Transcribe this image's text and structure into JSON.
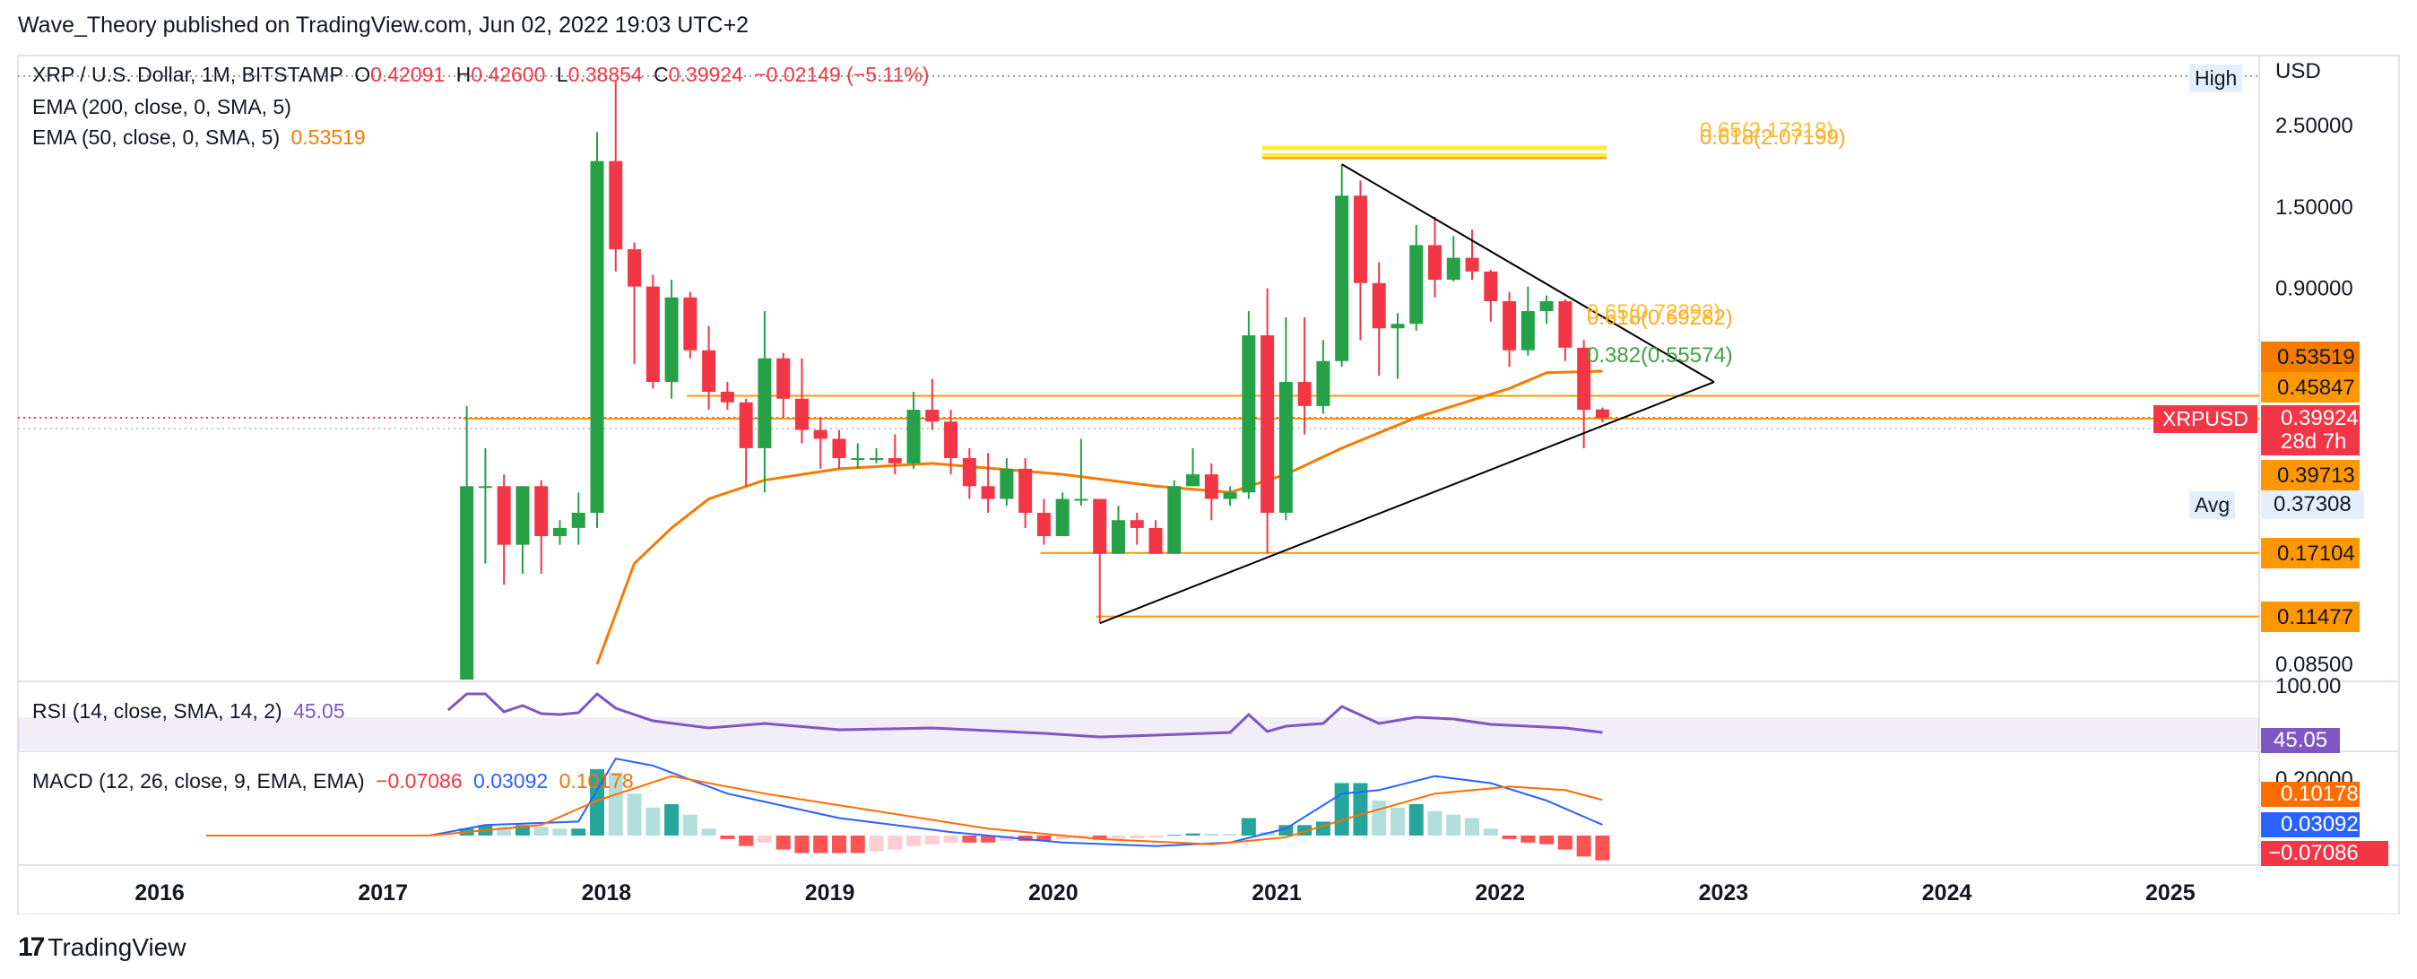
{
  "header": {
    "publisher": "Wave_Theory published on TradingView.com, Jun 02, 2022 19:03 UTC+2"
  },
  "legend": {
    "symbol": "XRP / U.S. Dollar, 1M, BITSTAMP",
    "o_label": "O",
    "o_value": "0.42091",
    "h_label": "H",
    "h_value": "0.42600",
    "l_label": "L",
    "l_value": "0.38854",
    "c_label": "C",
    "c_value": "0.39924",
    "change": "−0.02149 (−5.11%)",
    "ema200": "EMA (200, close, 0, SMA, 5)",
    "ema50": "EMA (50, close, 0, SMA, 5)",
    "ema50_value": "0.53519",
    "rsi": "RSI (14, close, SMA, 14, 2)",
    "rsi_value": "45.05",
    "macd": "MACD (12, 26, close, 9, EMA, EMA)",
    "macd_hist": "−0.07086",
    "macd_line": "0.03092",
    "macd_signal": "0.10178"
  },
  "price_axis": {
    "currency": "USD",
    "ticks": [
      "2.50000",
      "1.50000",
      "0.90000",
      "0.08500"
    ],
    "high_label": "High",
    "avg_label": "Avg",
    "avg_value": "0.37308",
    "labels": [
      {
        "value": "0.53519",
        "color": "#f57c00"
      },
      {
        "value": "0.45847",
        "color": "#ff9800"
      },
      {
        "value": "0.39713",
        "color": "#ff9800"
      },
      {
        "value": "0.17104",
        "color": "#ff9800"
      },
      {
        "value": "0.11477",
        "color": "#ff9800"
      }
    ],
    "current": {
      "symbol": "XRPUSD",
      "value": "0.39924",
      "countdown": "28d 7h",
      "color": "#f23645"
    }
  },
  "rsi_axis": {
    "top_tick": "100.00",
    "value": "45.05",
    "color": "#7e57c2"
  },
  "macd_axis": {
    "top_tick": "0.20000",
    "signal": "0.10178",
    "line": "0.03092",
    "hist": "−0.07086"
  },
  "fib_labels": {
    "top_a": "0.618(2.07199)",
    "top_b": "0.65(2.17318)",
    "mid_a": "0.618(0.69282)",
    "mid_b": "0.65(0.72292)",
    "mid_c": "0.382(0.55574)"
  },
  "time_axis": [
    "2016",
    "2017",
    "2018",
    "2019",
    "2020",
    "2021",
    "2022",
    "2023",
    "2024",
    "2025"
  ],
  "footer": {
    "brand": "TradingView"
  },
  "colors": {
    "up": "#26a148",
    "down": "#f23645",
    "ema": "#f57c00",
    "rsi": "#7e57c2",
    "macd_line": "#2962ff",
    "signal": "#ff6d00",
    "fib": "#ffeb3b",
    "fib_text": "#f9a825"
  },
  "chart_data": {
    "type": "candlestick",
    "title": "XRP / U.S. Dollar, 1M, BITSTAMP",
    "scale": "log",
    "ylim": [
      0.085,
      3.3
    ],
    "candles": [
      {
        "t": "2017-05",
        "o": 0.06,
        "h": 0.43,
        "l": 0.055,
        "c": 0.26
      },
      {
        "t": "2017-06",
        "o": 0.26,
        "h": 0.33,
        "l": 0.16,
        "c": 0.26
      },
      {
        "t": "2017-07",
        "o": 0.26,
        "h": 0.28,
        "l": 0.14,
        "c": 0.18
      },
      {
        "t": "2017-08",
        "o": 0.18,
        "h": 0.26,
        "l": 0.15,
        "c": 0.26
      },
      {
        "t": "2017-09",
        "o": 0.26,
        "h": 0.27,
        "l": 0.15,
        "c": 0.19
      },
      {
        "t": "2017-10",
        "o": 0.19,
        "h": 0.21,
        "l": 0.18,
        "c": 0.2
      },
      {
        "t": "2017-11",
        "o": 0.2,
        "h": 0.25,
        "l": 0.18,
        "c": 0.22
      },
      {
        "t": "2017-12",
        "o": 0.22,
        "h": 2.4,
        "l": 0.2,
        "c": 2.0
      },
      {
        "t": "2018-01",
        "o": 2.0,
        "h": 3.3,
        "l": 1.0,
        "c": 1.15
      },
      {
        "t": "2018-02",
        "o": 1.15,
        "h": 1.2,
        "l": 0.56,
        "c": 0.91
      },
      {
        "t": "2018-03",
        "o": 0.91,
        "h": 0.98,
        "l": 0.48,
        "c": 0.5
      },
      {
        "t": "2018-04",
        "o": 0.5,
        "h": 0.95,
        "l": 0.45,
        "c": 0.85
      },
      {
        "t": "2018-05",
        "o": 0.85,
        "h": 0.88,
        "l": 0.58,
        "c": 0.61
      },
      {
        "t": "2018-06",
        "o": 0.61,
        "h": 0.71,
        "l": 0.42,
        "c": 0.47
      },
      {
        "t": "2018-07",
        "o": 0.47,
        "h": 0.5,
        "l": 0.42,
        "c": 0.44
      },
      {
        "t": "2018-08",
        "o": 0.44,
        "h": 0.45,
        "l": 0.26,
        "c": 0.33
      },
      {
        "t": "2018-09",
        "o": 0.33,
        "h": 0.78,
        "l": 0.25,
        "c": 0.58
      },
      {
        "t": "2018-10",
        "o": 0.58,
        "h": 0.6,
        "l": 0.4,
        "c": 0.45
      },
      {
        "t": "2018-11",
        "o": 0.45,
        "h": 0.58,
        "l": 0.34,
        "c": 0.37
      },
      {
        "t": "2018-12",
        "o": 0.37,
        "h": 0.4,
        "l": 0.29,
        "c": 0.35
      },
      {
        "t": "2019-01",
        "o": 0.35,
        "h": 0.37,
        "l": 0.29,
        "c": 0.31
      },
      {
        "t": "2019-02",
        "o": 0.31,
        "h": 0.34,
        "l": 0.29,
        "c": 0.31
      },
      {
        "t": "2019-03",
        "o": 0.31,
        "h": 0.33,
        "l": 0.3,
        "c": 0.31
      },
      {
        "t": "2019-04",
        "o": 0.31,
        "h": 0.36,
        "l": 0.28,
        "c": 0.3
      },
      {
        "t": "2019-05",
        "o": 0.3,
        "h": 0.47,
        "l": 0.29,
        "c": 0.42
      },
      {
        "t": "2019-06",
        "o": 0.42,
        "h": 0.51,
        "l": 0.37,
        "c": 0.39
      },
      {
        "t": "2019-07",
        "o": 0.39,
        "h": 0.42,
        "l": 0.28,
        "c": 0.31
      },
      {
        "t": "2019-08",
        "o": 0.31,
        "h": 0.33,
        "l": 0.24,
        "c": 0.26
      },
      {
        "t": "2019-09",
        "o": 0.26,
        "h": 0.32,
        "l": 0.22,
        "c": 0.24
      },
      {
        "t": "2019-10",
        "o": 0.24,
        "h": 0.31,
        "l": 0.23,
        "c": 0.29
      },
      {
        "t": "2019-11",
        "o": 0.29,
        "h": 0.31,
        "l": 0.2,
        "c": 0.22
      },
      {
        "t": "2019-12",
        "o": 0.22,
        "h": 0.24,
        "l": 0.18,
        "c": 0.19
      },
      {
        "t": "2020-01",
        "o": 0.19,
        "h": 0.25,
        "l": 0.19,
        "c": 0.24
      },
      {
        "t": "2020-02",
        "o": 0.24,
        "h": 0.35,
        "l": 0.23,
        "c": 0.24
      },
      {
        "t": "2020-03",
        "o": 0.24,
        "h": 0.24,
        "l": 0.11,
        "c": 0.17
      },
      {
        "t": "2020-04",
        "o": 0.17,
        "h": 0.23,
        "l": 0.17,
        "c": 0.21
      },
      {
        "t": "2020-05",
        "o": 0.21,
        "h": 0.22,
        "l": 0.18,
        "c": 0.2
      },
      {
        "t": "2020-06",
        "o": 0.2,
        "h": 0.21,
        "l": 0.17,
        "c": 0.17
      },
      {
        "t": "2020-07",
        "o": 0.17,
        "h": 0.27,
        "l": 0.17,
        "c": 0.26
      },
      {
        "t": "2020-08",
        "o": 0.26,
        "h": 0.33,
        "l": 0.26,
        "c": 0.28
      },
      {
        "t": "2020-09",
        "o": 0.28,
        "h": 0.3,
        "l": 0.21,
        "c": 0.24
      },
      {
        "t": "2020-10",
        "o": 0.24,
        "h": 0.26,
        "l": 0.23,
        "c": 0.25
      },
      {
        "t": "2020-11",
        "o": 0.25,
        "h": 0.78,
        "l": 0.24,
        "c": 0.67
      },
      {
        "t": "2020-12",
        "o": 0.67,
        "h": 0.9,
        "l": 0.17,
        "c": 0.22
      },
      {
        "t": "2021-01",
        "o": 0.22,
        "h": 0.75,
        "l": 0.21,
        "c": 0.5
      },
      {
        "t": "2021-02",
        "o": 0.5,
        "h": 0.75,
        "l": 0.36,
        "c": 0.43
      },
      {
        "t": "2021-03",
        "o": 0.43,
        "h": 0.65,
        "l": 0.41,
        "c": 0.57
      },
      {
        "t": "2021-04",
        "o": 0.57,
        "h": 1.96,
        "l": 0.55,
        "c": 1.61
      },
      {
        "t": "2021-05",
        "o": 1.61,
        "h": 1.77,
        "l": 0.65,
        "c": 0.93
      },
      {
        "t": "2021-06",
        "o": 0.93,
        "h": 1.06,
        "l": 0.52,
        "c": 0.7
      },
      {
        "t": "2021-07",
        "o": 0.7,
        "h": 0.77,
        "l": 0.51,
        "c": 0.72
      },
      {
        "t": "2021-08",
        "o": 0.72,
        "h": 1.34,
        "l": 0.69,
        "c": 1.18
      },
      {
        "t": "2021-09",
        "o": 1.18,
        "h": 1.41,
        "l": 0.85,
        "c": 0.95
      },
      {
        "t": "2021-10",
        "o": 0.95,
        "h": 1.25,
        "l": 0.94,
        "c": 1.09
      },
      {
        "t": "2021-11",
        "o": 1.09,
        "h": 1.3,
        "l": 0.95,
        "c": 1.0
      },
      {
        "t": "2021-12",
        "o": 1.0,
        "h": 1.01,
        "l": 0.73,
        "c": 0.83
      },
      {
        "t": "2022-01",
        "o": 0.83,
        "h": 0.88,
        "l": 0.55,
        "c": 0.61
      },
      {
        "t": "2022-02",
        "o": 0.61,
        "h": 0.91,
        "l": 0.59,
        "c": 0.78
      },
      {
        "t": "2022-03",
        "o": 0.78,
        "h": 0.86,
        "l": 0.72,
        "c": 0.83
      },
      {
        "t": "2022-04",
        "o": 0.83,
        "h": 0.84,
        "l": 0.57,
        "c": 0.62
      },
      {
        "t": "2022-05",
        "o": 0.62,
        "h": 0.65,
        "l": 0.33,
        "c": 0.42
      },
      {
        "t": "2022-06",
        "o": 0.42091,
        "h": 0.426,
        "l": 0.38854,
        "c": 0.39924
      }
    ],
    "ema50": [
      {
        "t": "2017-12",
        "v": 0.085
      },
      {
        "t": "2018-02",
        "v": 0.16
      },
      {
        "t": "2018-04",
        "v": 0.2
      },
      {
        "t": "2018-06",
        "v": 0.24
      },
      {
        "t": "2018-09",
        "v": 0.27
      },
      {
        "t": "2019-01",
        "v": 0.29
      },
      {
        "t": "2019-06",
        "v": 0.3
      },
      {
        "t": "2020-01",
        "v": 0.28
      },
      {
        "t": "2020-06",
        "v": 0.26
      },
      {
        "t": "2020-10",
        "v": 0.25
      },
      {
        "t": "2021-01",
        "v": 0.28
      },
      {
        "t": "2021-04",
        "v": 0.33
      },
      {
        "t": "2021-08",
        "v": 0.4
      },
      {
        "t": "2022-01",
        "v": 0.48
      },
      {
        "t": "2022-03",
        "v": 0.53
      },
      {
        "t": "2022-06",
        "v": 0.53519
      }
    ],
    "horizontal_levels": [
      0.45847,
      0.39713,
      0.17104,
      0.11477
    ],
    "triangle": {
      "upper": [
        {
          "t": "2021-04",
          "v": 1.96
        },
        {
          "t": "2022-12",
          "v": 0.5
        }
      ],
      "lower": [
        {
          "t": "2020-03",
          "v": 0.11
        },
        {
          "t": "2022-12",
          "v": 0.5
        }
      ]
    },
    "rsi": {
      "points": [
        {
          "t": "2017-04",
          "v": 70
        },
        {
          "t": "2017-05",
          "v": 88
        },
        {
          "t": "2017-06",
          "v": 88
        },
        {
          "t": "2017-07",
          "v": 68
        },
        {
          "t": "2017-08",
          "v": 75
        },
        {
          "t": "2017-09",
          "v": 66
        },
        {
          "t": "2017-10",
          "v": 65
        },
        {
          "t": "2017-11",
          "v": 67
        },
        {
          "t": "2017-12",
          "v": 88
        },
        {
          "t": "2018-01",
          "v": 72
        },
        {
          "t": "2018-03",
          "v": 58
        },
        {
          "t": "2018-06",
          "v": 50
        },
        {
          "t": "2018-09",
          "v": 55
        },
        {
          "t": "2019-01",
          "v": 48
        },
        {
          "t": "2019-06",
          "v": 50
        },
        {
          "t": "2019-12",
          "v": 44
        },
        {
          "t": "2020-03",
          "v": 40
        },
        {
          "t": "2020-06",
          "v": 42
        },
        {
          "t": "2020-10",
          "v": 45
        },
        {
          "t": "2020-11",
          "v": 65
        },
        {
          "t": "2020-12",
          "v": 46
        },
        {
          "t": "2021-01",
          "v": 52
        },
        {
          "t": "2021-03",
          "v": 55
        },
        {
          "t": "2021-04",
          "v": 74
        },
        {
          "t": "2021-06",
          "v": 55
        },
        {
          "t": "2021-08",
          "v": 62
        },
        {
          "t": "2021-10",
          "v": 60
        },
        {
          "t": "2021-12",
          "v": 54
        },
        {
          "t": "2022-02",
          "v": 52
        },
        {
          "t": "2022-04",
          "v": 50
        },
        {
          "t": "2022-06",
          "v": 45.05
        }
      ]
    },
    "macd": {
      "hist": [
        {
          "t": "2016-09",
          "v": 0.001
        },
        {
          "t": "2017-01",
          "v": 0.002
        },
        {
          "t": "2017-05",
          "v": 0.02
        },
        {
          "t": "2017-06",
          "v": 0.03
        },
        {
          "t": "2017-07",
          "v": 0.025
        },
        {
          "t": "2017-08",
          "v": 0.03
        },
        {
          "t": "2017-09",
          "v": 0.025
        },
        {
          "t": "2017-10",
          "v": 0.02
        },
        {
          "t": "2017-11",
          "v": 0.02
        },
        {
          "t": "2017-12",
          "v": 0.19
        },
        {
          "t": "2018-01",
          "v": 0.18
        },
        {
          "t": "2018-02",
          "v": 0.12
        },
        {
          "t": "2018-03",
          "v": 0.08
        },
        {
          "t": "2018-04",
          "v": 0.09
        },
        {
          "t": "2018-05",
          "v": 0.06
        },
        {
          "t": "2018-06",
          "v": 0.02
        },
        {
          "t": "2018-07",
          "v": -0.01
        },
        {
          "t": "2018-08",
          "v": -0.03
        },
        {
          "t": "2018-09",
          "v": -0.02
        },
        {
          "t": "2018-10",
          "v": -0.04
        },
        {
          "t": "2018-11",
          "v": -0.05
        },
        {
          "t": "2018-12",
          "v": -0.05
        },
        {
          "t": "2019-01",
          "v": -0.05
        },
        {
          "t": "2019-02",
          "v": -0.05
        },
        {
          "t": "2019-03",
          "v": -0.045
        },
        {
          "t": "2019-04",
          "v": -0.04
        },
        {
          "t": "2019-05",
          "v": -0.03
        },
        {
          "t": "2019-06",
          "v": -0.025
        },
        {
          "t": "2019-07",
          "v": -0.02
        },
        {
          "t": "2019-08",
          "v": -0.02
        },
        {
          "t": "2019-09",
          "v": -0.02
        },
        {
          "t": "2019-10",
          "v": -0.015
        },
        {
          "t": "2019-11",
          "v": -0.015
        },
        {
          "t": "2019-12",
          "v": -0.015
        },
        {
          "t": "2020-01",
          "v": -0.01
        },
        {
          "t": "2020-02",
          "v": -0.008
        },
        {
          "t": "2020-03",
          "v": -0.012
        },
        {
          "t": "2020-04",
          "v": -0.01
        },
        {
          "t": "2020-05",
          "v": -0.008
        },
        {
          "t": "2020-06",
          "v": -0.006
        },
        {
          "t": "2020-07",
          "v": 0.002
        },
        {
          "t": "2020-08",
          "v": 0.006
        },
        {
          "t": "2020-09",
          "v": 0.005
        },
        {
          "t": "2020-10",
          "v": 0.004
        },
        {
          "t": "2020-11",
          "v": 0.05
        },
        {
          "t": "2020-12",
          "v": 0.01
        },
        {
          "t": "2021-01",
          "v": 0.03
        },
        {
          "t": "2021-02",
          "v": 0.03
        },
        {
          "t": "2021-03",
          "v": 0.04
        },
        {
          "t": "2021-04",
          "v": 0.15
        },
        {
          "t": "2021-05",
          "v": 0.15
        },
        {
          "t": "2021-06",
          "v": 0.1
        },
        {
          "t": "2021-07",
          "v": 0.08
        },
        {
          "t": "2021-08",
          "v": 0.09
        },
        {
          "t": "2021-09",
          "v": 0.07
        },
        {
          "t": "2021-10",
          "v": 0.06
        },
        {
          "t": "2021-11",
          "v": 0.05
        },
        {
          "t": "2021-12",
          "v": 0.02
        },
        {
          "t": "2022-01",
          "v": -0.01
        },
        {
          "t": "2022-02",
          "v": -0.02
        },
        {
          "t": "2022-03",
          "v": -0.025
        },
        {
          "t": "2022-04",
          "v": -0.04
        },
        {
          "t": "2022-05",
          "v": -0.06
        },
        {
          "t": "2022-06",
          "v": -0.07086
        }
      ],
      "macd_line": [
        {
          "t": "2016-03",
          "v": 0.0
        },
        {
          "t": "2017-03",
          "v": 0.0
        },
        {
          "t": "2017-06",
          "v": 0.03
        },
        {
          "t": "2017-11",
          "v": 0.04
        },
        {
          "t": "2018-01",
          "v": 0.22
        },
        {
          "t": "2018-03",
          "v": 0.2
        },
        {
          "t": "2018-07",
          "v": 0.12
        },
        {
          "t": "2019-01",
          "v": 0.05
        },
        {
          "t": "2019-07",
          "v": 0.01
        },
        {
          "t": "2020-01",
          "v": -0.02
        },
        {
          "t": "2020-06",
          "v": -0.03
        },
        {
          "t": "2020-10",
          "v": -0.02
        },
        {
          "t": "2021-01",
          "v": 0.02
        },
        {
          "t": "2021-04",
          "v": 0.12
        },
        {
          "t": "2021-06",
          "v": 0.13
        },
        {
          "t": "2021-09",
          "v": 0.17
        },
        {
          "t": "2021-12",
          "v": 0.15
        },
        {
          "t": "2022-03",
          "v": 0.1
        },
        {
          "t": "2022-06",
          "v": 0.03092
        }
      ],
      "signal_line": [
        {
          "t": "2016-03",
          "v": 0.0
        },
        {
          "t": "2017-03",
          "v": 0.0
        },
        {
          "t": "2017-09",
          "v": 0.03
        },
        {
          "t": "2017-12",
          "v": 0.1
        },
        {
          "t": "2018-04",
          "v": 0.17
        },
        {
          "t": "2018-09",
          "v": 0.12
        },
        {
          "t": "2019-03",
          "v": 0.07
        },
        {
          "t": "2019-09",
          "v": 0.02
        },
        {
          "t": "2020-03",
          "v": -0.01
        },
        {
          "t": "2020-09",
          "v": -0.025
        },
        {
          "t": "2021-01",
          "v": -0.005
        },
        {
          "t": "2021-05",
          "v": 0.06
        },
        {
          "t": "2021-09",
          "v": 0.12
        },
        {
          "t": "2022-01",
          "v": 0.14
        },
        {
          "t": "2022-04",
          "v": 0.13
        },
        {
          "t": "2022-06",
          "v": 0.10178
        }
      ]
    }
  }
}
